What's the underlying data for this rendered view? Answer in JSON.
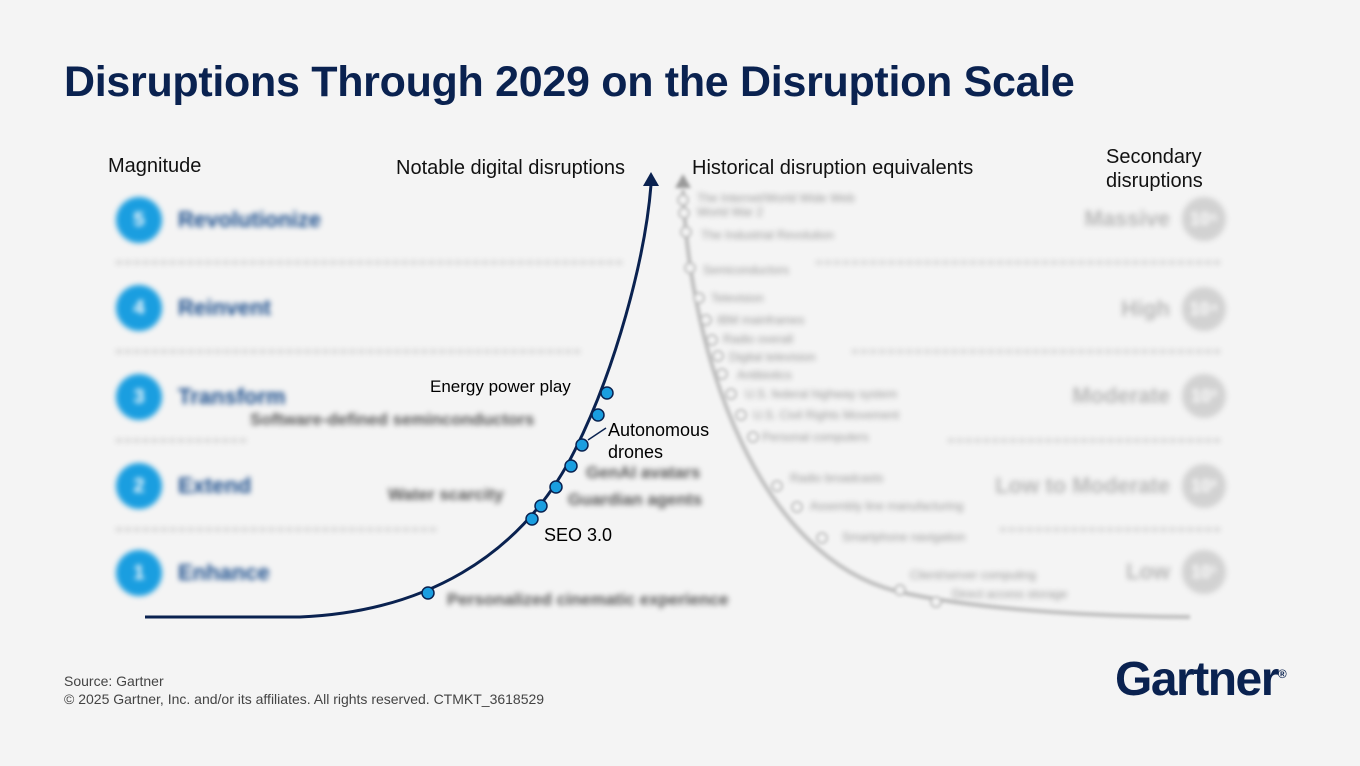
{
  "title": "Disruptions Through 2029 on the Disruption Scale",
  "headers": {
    "magnitude": "Magnitude",
    "notable": "Notable digital disruptions",
    "historical": "Historical disruption equivalents",
    "secondary_line1": "Secondary",
    "secondary_line2": "disruptions"
  },
  "levels": [
    {
      "num": "5",
      "name": "Revolutionize"
    },
    {
      "num": "4",
      "name": "Reinvent"
    },
    {
      "num": "3",
      "name": "Transform"
    },
    {
      "num": "2",
      "name": "Extend"
    },
    {
      "num": "1",
      "name": "Enhance"
    }
  ],
  "secondary": [
    {
      "label": "Massive",
      "exp": "10⁵"
    },
    {
      "label": "High",
      "exp": "10⁴"
    },
    {
      "label": "Moderate",
      "exp": "10³"
    },
    {
      "label": "Low to Moderate",
      "exp": "10²"
    },
    {
      "label": "Low",
      "exp": "10¹"
    }
  ],
  "notable_disruptions": {
    "energy": "Energy power play",
    "software": "Software-defined seminconductors",
    "drones_line1": "Autonomous",
    "drones_line2": "drones",
    "genai": "GenAI avatars",
    "water": "Water scarcity",
    "guardian": "Guardian agents",
    "seo": "SEO 3.0",
    "cinematic": "Personalized cinematic experience"
  },
  "historical": [
    "The Internet/World Wide Web",
    "World War 2",
    "The Industrial Revolution",
    "Semiconductors",
    "Television",
    "IBM mainframes",
    "Radio overall",
    "Digital television",
    "Antibiotics",
    "U.S. federal highway system",
    "U.S. Civil Rights Movement",
    "Personal computers",
    "Radio broadcasts",
    "Assembly line manufacturing",
    "Smartphone navigation",
    "Client/server computing",
    "Direct access storage"
  ],
  "footer": {
    "source": "Source: Gartner",
    "copyright": "© 2025 Gartner, Inc. and/or its affiliates. All rights reserved. CTMKT_3618529"
  },
  "logo": "Gartner",
  "logo_mark": "®",
  "colors": {
    "title": "#0a2250",
    "curve": "#0a2250",
    "marker": "#1a9ee0",
    "level_circle": "#1a9ee0",
    "historical": "#bdbdbd"
  }
}
